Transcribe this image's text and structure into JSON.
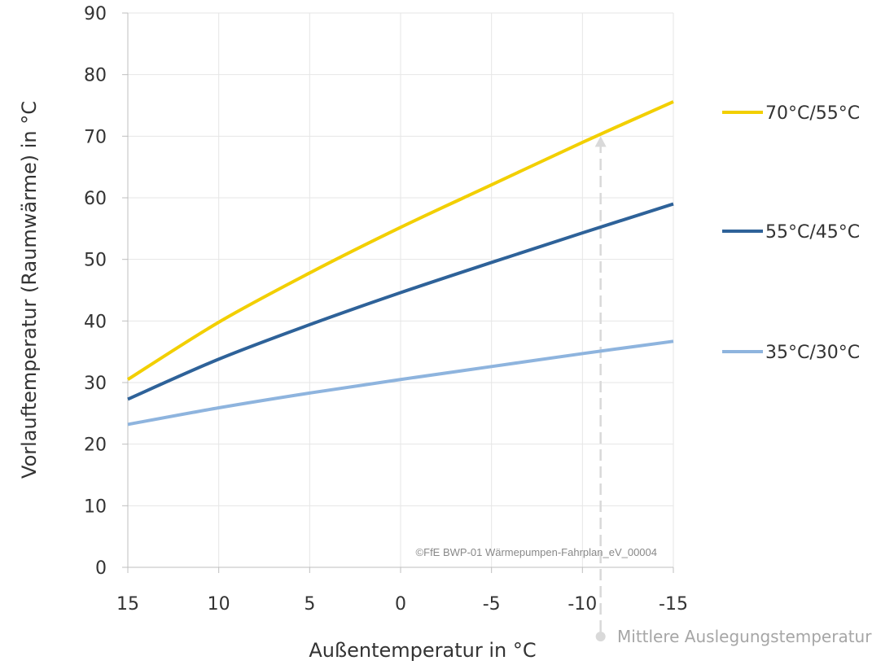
{
  "chart_data": {
    "type": "line",
    "xlabel": "Außentemperatur in °C",
    "ylabel": "Vorlauftemperatur (Raumwärme) in °C",
    "xlim": [
      15,
      -15
    ],
    "ylim": [
      0,
      90
    ],
    "x_ticks": [
      15,
      10,
      5,
      0,
      -5,
      -10,
      -15
    ],
    "x_tick_labels": [
      "15",
      "10",
      "5",
      "0",
      "-5",
      "-10",
      "-15"
    ],
    "y_ticks": [
      0,
      10,
      20,
      30,
      40,
      50,
      60,
      70,
      80,
      90
    ],
    "y_tick_labels": [
      "0",
      "10",
      "20",
      "30",
      "40",
      "50",
      "60",
      "70",
      "80",
      "90"
    ],
    "grid": true,
    "legend_position": "right",
    "series": [
      {
        "name": "70°C/55°C",
        "color": "#F2CF00",
        "x": [
          15,
          10,
          5,
          0,
          -5,
          -10,
          -15
        ],
        "y": [
          30.5,
          39.8,
          47.8,
          55.2,
          62.1,
          69.0,
          75.6
        ]
      },
      {
        "name": "55°C/45°C",
        "color": "#2E6299",
        "x": [
          15,
          10,
          5,
          0,
          -5,
          -10,
          -15
        ],
        "y": [
          27.3,
          33.8,
          39.4,
          44.6,
          49.5,
          54.3,
          59.0
        ]
      },
      {
        "name": "35°C/30°C",
        "color": "#8EB4DE",
        "x": [
          15,
          10,
          5,
          0,
          -5,
          -10,
          -15
        ],
        "y": [
          23.2,
          25.9,
          28.3,
          30.5,
          32.6,
          34.7,
          36.7
        ]
      }
    ],
    "annotation": {
      "label": "Mittlere Auslegungstemperatur",
      "x": -11,
      "y_top": 70,
      "color": "#D9D9D9"
    },
    "watermark": "©FfE BWP-01 Wärmepumpen-Fahrplan_eV_00004"
  }
}
